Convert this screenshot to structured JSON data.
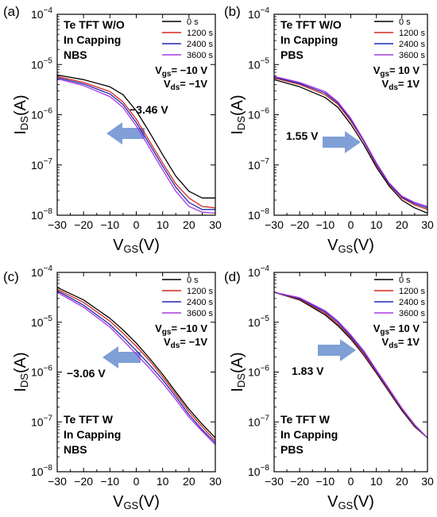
{
  "chart_data": [
    {
      "type": "line",
      "panel_label": "(a)",
      "y_scale": "log",
      "xlim": [
        -30,
        30
      ],
      "ylim": [
        1e-08,
        0.0001
      ],
      "x_ticks": [
        "-30",
        "-20",
        "-10",
        "0",
        "10",
        "20",
        "30"
      ],
      "y_ticks": [
        "10-8",
        "10-7",
        "10-6",
        "10-5",
        "10-4"
      ],
      "annotation_lines": [
        "Te TFT W/O",
        "In Capping",
        "NBS"
      ],
      "bias_lines": [
        {
          "sym": "V",
          "sub": "gs",
          "val": "= -10 V"
        },
        {
          "sym": "V",
          "sub": "ds",
          "val": "= -1V"
        }
      ],
      "shift_label": "-3.46 V",
      "arrow_direction": "left",
      "legend": [
        "0 s",
        "1200 s",
        "2400 s",
        "3600 s"
      ],
      "series": [
        {
          "name": "0 s",
          "color": "#000000",
          "x": [
            -30,
            -20,
            -10,
            -5,
            0,
            5,
            10,
            15,
            20,
            25,
            30
          ],
          "y": [
            6.2e-06,
            5e-06,
            3.6e-06,
            2.5e-06,
            1.2e-06,
            4.5e-07,
            1.6e-07,
            6e-08,
            3e-08,
            2.2e-08,
            2.2e-08
          ]
        },
        {
          "name": "1200 s",
          "color": "#d42a1a",
          "x": [
            -30,
            -20,
            -10,
            -5,
            0,
            5,
            10,
            15,
            20,
            25,
            30
          ],
          "y": [
            5.8e-06,
            4.4e-06,
            2.9e-06,
            1.8e-06,
            8.2e-07,
            3e-07,
            1.1e-07,
            4.2e-08,
            2.2e-08,
            1.5e-08,
            1.4e-08
          ]
        },
        {
          "name": "2400 s",
          "color": "#1f28b8",
          "x": [
            -30,
            -20,
            -10,
            -5,
            0,
            5,
            10,
            15,
            20,
            25,
            30
          ],
          "y": [
            5.5e-06,
            4.1e-06,
            2.6e-06,
            1.6e-06,
            7e-07,
            2.6e-07,
            9.5e-08,
            3.6e-08,
            1.8e-08,
            1.3e-08,
            1.3e-08
          ]
        },
        {
          "name": "3600 s",
          "color": "#a638e0",
          "x": [
            -30,
            -20,
            -10,
            -5,
            0,
            5,
            10,
            15,
            20,
            25,
            30
          ],
          "y": [
            5.2e-06,
            3.8e-06,
            2.3e-06,
            1.4e-06,
            6e-07,
            2.2e-07,
            8e-08,
            3e-08,
            1.5e-08,
            1.15e-08,
            1.1e-08
          ]
        }
      ]
    },
    {
      "type": "line",
      "panel_label": "(b)",
      "y_scale": "log",
      "xlim": [
        -30,
        30
      ],
      "ylim": [
        1e-08,
        0.0001
      ],
      "x_ticks": [
        "-30",
        "-20",
        "-10",
        "0",
        "10",
        "20",
        "30"
      ],
      "y_ticks": [
        "10-8",
        "10-7",
        "10-6",
        "10-5",
        "10-4"
      ],
      "annotation_lines": [
        "Te TFT W/O",
        "In Capping",
        "PBS"
      ],
      "bias_lines": [
        {
          "sym": "V",
          "sub": "gs",
          "val": "= 10 V"
        },
        {
          "sym": "V",
          "sub": "ds",
          "val": "= 1V"
        }
      ],
      "shift_label": "1.55 V",
      "arrow_direction": "right",
      "legend": [
        "0 s",
        "1200 s",
        "2400 s",
        "3600 s"
      ],
      "series": [
        {
          "name": "0 s",
          "color": "#000000",
          "x": [
            -30,
            -20,
            -10,
            -5,
            0,
            5,
            10,
            15,
            20,
            25,
            30
          ],
          "y": [
            5e-06,
            3.6e-06,
            2.2e-06,
            1.4e-06,
            6.5e-07,
            2.6e-07,
            9e-08,
            3.8e-08,
            2e-08,
            1.4e-08,
            1.1e-08
          ]
        },
        {
          "name": "1200 s",
          "color": "#d42a1a",
          "x": [
            -30,
            -20,
            -10,
            -5,
            0,
            5,
            10,
            15,
            20,
            25,
            30
          ],
          "y": [
            5.4e-06,
            4e-06,
            2.5e-06,
            1.6e-06,
            7.5e-07,
            3e-07,
            1e-07,
            4.1e-08,
            2.2e-08,
            1.6e-08,
            1.3e-08
          ]
        },
        {
          "name": "2400 s",
          "color": "#1f28b8",
          "x": [
            -30,
            -20,
            -10,
            -5,
            0,
            5,
            10,
            15,
            20,
            25,
            30
          ],
          "y": [
            5.6e-06,
            4.2e-06,
            2.7e-06,
            1.7e-06,
            8e-07,
            3.1e-07,
            1.05e-07,
            4.2e-08,
            2.3e-08,
            1.7e-08,
            1.4e-08
          ]
        },
        {
          "name": "3600 s",
          "color": "#a638e0",
          "x": [
            -30,
            -20,
            -10,
            -5,
            0,
            5,
            10,
            15,
            20,
            25,
            30
          ],
          "y": [
            5.8e-06,
            4.4e-06,
            2.9e-06,
            1.8e-06,
            8.5e-07,
            3.2e-07,
            1.1e-07,
            4.4e-08,
            2.4e-08,
            1.8e-08,
            1.5e-08
          ]
        }
      ]
    },
    {
      "type": "line",
      "panel_label": "(c)",
      "y_scale": "log",
      "xlim": [
        -30,
        30
      ],
      "ylim": [
        1e-08,
        0.0001
      ],
      "x_ticks": [
        "-30",
        "-20",
        "-10",
        "0",
        "10",
        "20",
        "30"
      ],
      "y_ticks": [
        "10-8",
        "10-7",
        "10-6",
        "10-5",
        "10-4"
      ],
      "annotation_lines": [
        "Te TFT W",
        "In Capping",
        "NBS"
      ],
      "bias_lines": [
        {
          "sym": "V",
          "sub": "gs",
          "val": "= -10 V"
        },
        {
          "sym": "V",
          "sub": "ds",
          "val": "= -1V"
        }
      ],
      "shift_label": "-3.06 V",
      "arrow_direction": "left",
      "legend": [
        "0 s",
        "1200 s",
        "2400 s",
        "3600 s"
      ],
      "series": [
        {
          "name": "0 s",
          "color": "#000000",
          "x": [
            -30,
            -20,
            -10,
            -5,
            0,
            5,
            10,
            15,
            20,
            25,
            30
          ],
          "y": [
            5e-05,
            2.8e-05,
            1.2e-05,
            7e-06,
            3.8e-06,
            1.9e-06,
            9e-07,
            4e-07,
            1.8e-07,
            9e-08,
            4.8e-08
          ]
        },
        {
          "name": "1200 s",
          "color": "#d42a1a",
          "x": [
            -30,
            -20,
            -10,
            -5,
            0,
            5,
            10,
            15,
            20,
            25,
            30
          ],
          "y": [
            4.6e-05,
            2.5e-05,
            1.05e-05,
            6e-06,
            3.3e-06,
            1.7e-06,
            8e-07,
            3.6e-07,
            1.6e-07,
            8e-08,
            4.2e-08
          ]
        },
        {
          "name": "2400 s",
          "color": "#1f28b8",
          "x": [
            -30,
            -20,
            -10,
            -5,
            0,
            5,
            10,
            15,
            20,
            25,
            30
          ],
          "y": [
            4.3e-05,
            2.2e-05,
            9e-06,
            5e-06,
            2.7e-06,
            1.4e-06,
            7e-07,
            3.2e-07,
            1.4e-07,
            7e-08,
            3.8e-08
          ]
        },
        {
          "name": "3600 s",
          "color": "#a638e0",
          "x": [
            -30,
            -20,
            -10,
            -5,
            0,
            5,
            10,
            15,
            20,
            25,
            30
          ],
          "y": [
            4e-05,
            2e-05,
            8e-06,
            4.3e-06,
            2.3e-06,
            1.2e-06,
            6e-07,
            2.8e-07,
            1.25e-07,
            6.5e-08,
            3.5e-08
          ]
        }
      ]
    },
    {
      "type": "line",
      "panel_label": "(d)",
      "y_scale": "log",
      "xlim": [
        -30,
        30
      ],
      "ylim": [
        1e-08,
        0.0001
      ],
      "x_ticks": [
        "-30",
        "-20",
        "-10",
        "0",
        "10",
        "20",
        "30"
      ],
      "y_ticks": [
        "10-8",
        "10-7",
        "10-6",
        "10-5",
        "10-4"
      ],
      "annotation_lines": [
        "Te TFT W",
        "In Capping",
        "PBS"
      ],
      "bias_lines": [
        {
          "sym": "V",
          "sub": "gs",
          "val": "= 10 V"
        },
        {
          "sym": "V",
          "sub": "ds",
          "val": "= 1V"
        }
      ],
      "shift_label": "1.83 V",
      "arrow_direction": "right",
      "legend": [
        "0 s",
        "1200 s",
        "2400 s",
        "3600 s"
      ],
      "series": [
        {
          "name": "0 s",
          "color": "#000000",
          "x": [
            -30,
            -20,
            -10,
            -5,
            0,
            5,
            10,
            15,
            20,
            25,
            30
          ],
          "y": [
            4e-05,
            2.8e-05,
            1.4e-05,
            8.5e-06,
            4.6e-06,
            2.2e-06,
            9.5e-07,
            4e-07,
            1.7e-07,
            8e-08,
            4.8e-08
          ]
        },
        {
          "name": "1200 s",
          "color": "#d42a1a",
          "x": [
            -30,
            -20,
            -10,
            -5,
            0,
            5,
            10,
            15,
            20,
            25,
            30
          ],
          "y": [
            4e-05,
            2.9e-05,
            1.5e-05,
            9e-06,
            4.9e-06,
            2.3e-06,
            1e-06,
            4.2e-07,
            1.8e-07,
            8.3e-08,
            4.8e-08
          ]
        },
        {
          "name": "2400 s",
          "color": "#1f28b8",
          "x": [
            -30,
            -20,
            -10,
            -5,
            0,
            5,
            10,
            15,
            20,
            25,
            30
          ],
          "y": [
            4e-05,
            3e-05,
            1.6e-05,
            9.8e-06,
            5.2e-06,
            2.5e-06,
            1.05e-06,
            4.4e-07,
            1.85e-07,
            8.6e-08,
            4.8e-08
          ]
        },
        {
          "name": "3600 s",
          "color": "#a638e0",
          "x": [
            -30,
            -20,
            -10,
            -5,
            0,
            5,
            10,
            15,
            20,
            25,
            30
          ],
          "y": [
            4e-05,
            3.1e-05,
            1.7e-05,
            1.05e-05,
            5.6e-06,
            2.7e-06,
            1.1e-06,
            4.6e-07,
            1.9e-07,
            8.8e-08,
            4.8e-08
          ]
        }
      ]
    }
  ],
  "x_axis_label": {
    "sym": "V",
    "sub": "GS",
    "unit": "(V)"
  },
  "y_axis_label": {
    "sym": "I",
    "sub": "DS",
    "unit": "(A)"
  },
  "colors": {
    "arrow": "#7f9fd6",
    "axis": "#000000",
    "text": "#000000"
  }
}
